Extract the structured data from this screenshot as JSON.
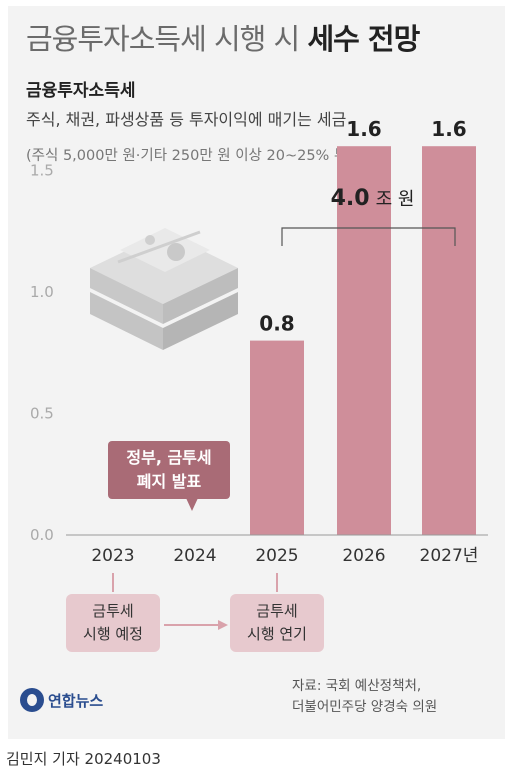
{
  "header": {
    "title_light": "금융투자소득세 시행 시",
    "title_bold": "세수 전망",
    "subtitle": "금융투자소득세",
    "description": "주식, 채권, 파생상품 등 투자이익에 매기는 세금",
    "note": "(주식 5,000만 원·기타 250만 원 이상 20~25% 부과)"
  },
  "colors": {
    "bar": "#cf8e9a",
    "callout": "#a96b76",
    "box": "#e7c9ce",
    "arrow": "#d9a2ab",
    "text_dark": "#222222",
    "grid": "#dcdcdc"
  },
  "chart_data": {
    "type": "bar",
    "categories": [
      "2023",
      "2024",
      "2025",
      "2026",
      "2027년"
    ],
    "values": [
      null,
      null,
      0.8,
      1.6,
      1.6
    ],
    "data_labels": [
      "",
      "",
      "0.8",
      "1.6",
      "1.6"
    ],
    "y_ticks": [
      "0.0",
      "0.5",
      "1.0",
      "1.5"
    ],
    "ylim": [
      0,
      1.8
    ],
    "grid": false,
    "bracket": {
      "from_category": "2026",
      "to_category": "2027년",
      "value": "4.0",
      "unit": "조 원"
    },
    "xlabel": "",
    "ylabel": ""
  },
  "annotations": {
    "callout_line1": "정부, 금투세",
    "callout_line2": "폐지 발표",
    "box_left_line1": "금투세",
    "box_left_line2": "시행 예정",
    "box_right_line1": "금투세",
    "box_right_line2": "시행 연기"
  },
  "footer": {
    "source_line1": "자료: 국회 예산정책처,",
    "source_line2": "더불어민주당 양경숙 의원",
    "logo_text": "연합뉴스",
    "byline": "김민지 기자 20240103"
  }
}
